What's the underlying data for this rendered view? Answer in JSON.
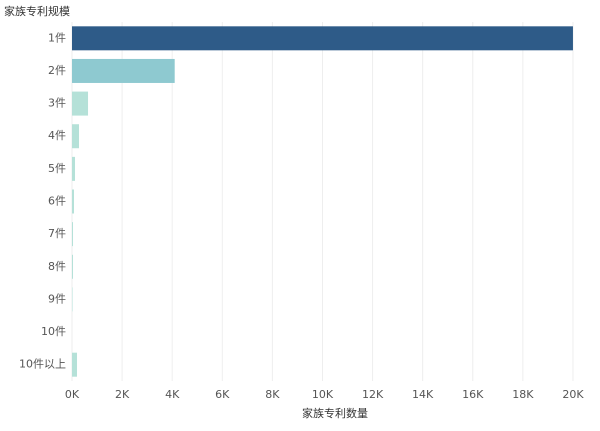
{
  "chart_data": {
    "type": "hbar",
    "y_axis_title": "家族专利规模",
    "x_axis_title": "家族专利数量",
    "categories": [
      "1件",
      "2件",
      "3件",
      "4件",
      "5件",
      "6件",
      "7件",
      "8件",
      "9件",
      "10件",
      "10件以上"
    ],
    "values": [
      20000,
      4100,
      640,
      280,
      120,
      80,
      40,
      40,
      20,
      0,
      200
    ],
    "colors": [
      "#2e5b88",
      "#8ec9d0",
      "#b5e1d8",
      "#b5e1d8",
      "#b5e1d8",
      "#b5e1d8",
      "#b5e1d8",
      "#b5e1d8",
      "#b5e1d8",
      "#b5e1d8",
      "#b5e1d8"
    ],
    "xlim": [
      0,
      21000
    ],
    "xticks": [
      {
        "value": 0,
        "label": "0K"
      },
      {
        "value": 2000,
        "label": "2K"
      },
      {
        "value": 4000,
        "label": "4K"
      },
      {
        "value": 6000,
        "label": "6K"
      },
      {
        "value": 8000,
        "label": "8K"
      },
      {
        "value": 10000,
        "label": "10K"
      },
      {
        "value": 12000,
        "label": "12K"
      },
      {
        "value": 14000,
        "label": "14K"
      },
      {
        "value": 16000,
        "label": "16K"
      },
      {
        "value": 18000,
        "label": "18K"
      },
      {
        "value": 20000,
        "label": "20K"
      }
    ],
    "grid": true
  }
}
